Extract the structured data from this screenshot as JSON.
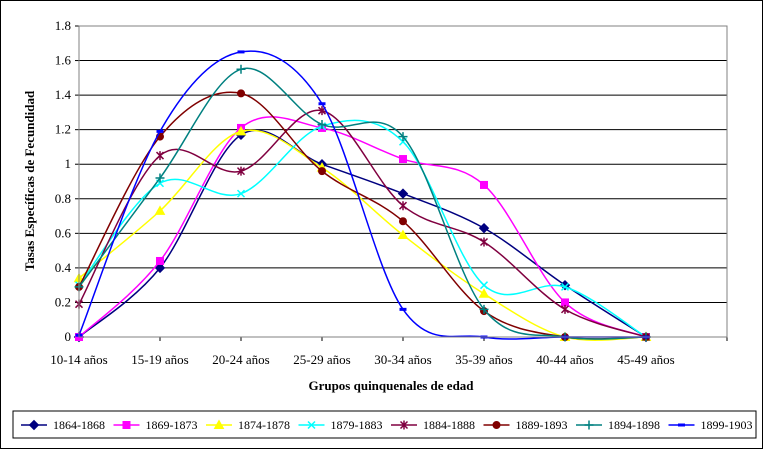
{
  "chart_data": {
    "type": "line",
    "title": "",
    "xlabel": "Grupos quinquenales de edad",
    "ylabel": "Tasas Específicas de Fecundidad",
    "categories": [
      "10-14 años",
      "15-19 años",
      "20-24 años",
      "25-29 años",
      "30-34 años",
      "35-39 años",
      "40-44 años",
      "45-49 años"
    ],
    "ylim": [
      0,
      1.8
    ],
    "yticks": [
      "0",
      "0.2",
      "0.4",
      "0.6",
      "0.8",
      "1",
      "1.2",
      "1.4",
      "1.6",
      "1.8"
    ],
    "grid": "horizontal",
    "legend_position": "bottom",
    "series": [
      {
        "name": "1864-1868",
        "color": "#000080",
        "marker": "diamond",
        "values": [
          0.0,
          0.4,
          1.17,
          1.0,
          0.83,
          0.63,
          0.3,
          0.0
        ]
      },
      {
        "name": "1869-1873",
        "color": "#ff00ff",
        "marker": "square",
        "values": [
          0.0,
          0.44,
          1.21,
          1.21,
          1.03,
          0.88,
          0.2,
          0.0
        ]
      },
      {
        "name": "1874-1878",
        "color": "#ffff00",
        "marker": "triangle",
        "values": [
          0.34,
          0.73,
          1.19,
          0.98,
          0.59,
          0.25,
          0.0,
          0.0
        ]
      },
      {
        "name": "1879-1883",
        "color": "#00ffff",
        "marker": "x",
        "values": [
          0.3,
          0.89,
          0.83,
          1.22,
          1.13,
          0.3,
          0.29,
          0.0
        ]
      },
      {
        "name": "1884-1888",
        "color": "#800040",
        "marker": "star",
        "values": [
          0.19,
          1.05,
          0.96,
          1.31,
          0.76,
          0.55,
          0.16,
          0.0
        ]
      },
      {
        "name": "1889-1893",
        "color": "#800000",
        "marker": "circle",
        "values": [
          0.29,
          1.16,
          1.41,
          0.96,
          0.67,
          0.15,
          0.0,
          0.0
        ]
      },
      {
        "name": "1894-1898",
        "color": "#008080",
        "marker": "plus",
        "values": [
          0.29,
          0.92,
          1.55,
          1.23,
          1.16,
          0.16,
          0.0,
          0.0
        ]
      },
      {
        "name": "1899-1903",
        "color": "#0000ff",
        "marker": "dash",
        "values": [
          0.01,
          1.19,
          1.65,
          1.35,
          0.16,
          0.0,
          0.0,
          0.0
        ]
      }
    ]
  }
}
